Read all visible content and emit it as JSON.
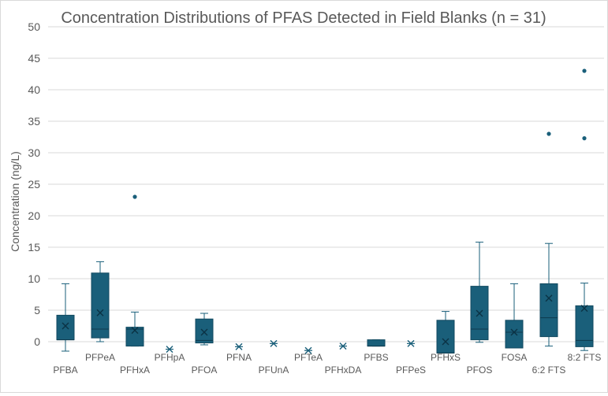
{
  "chart_data": {
    "type": "box",
    "title": "Concentration Distributions of PFAS Detected in Field Blanks (n = 31)",
    "ylabel": "Concentration (ng/L)",
    "xlabel": "",
    "ylim": [
      0,
      50
    ],
    "yticks": [
      0,
      5,
      10,
      15,
      20,
      25,
      30,
      35,
      40,
      45,
      50
    ],
    "grid": true,
    "color": "#1a5f7a",
    "categories": [
      "PFBA",
      "PFPeA",
      "PFHxA",
      "PFHpA",
      "PFOA",
      "PFNA",
      "PFUnA",
      "PFTeA",
      "PFHxDA",
      "PFBS",
      "PFPeS",
      "PFHxS",
      "PFOS",
      "FOSA",
      "6:2 FTS",
      "8:2 FTS"
    ],
    "boxes": [
      {
        "min": -1.5,
        "q1": 0.3,
        "median": 0.3,
        "q3": 4.2,
        "max": 9.2,
        "mean": 2.5,
        "outliers": []
      },
      {
        "min": 0.0,
        "q1": 0.6,
        "median": 2.0,
        "q3": 10.9,
        "max": 12.7,
        "mean": 4.6,
        "outliers": []
      },
      {
        "min": -0.7,
        "q1": -0.7,
        "median": 2.0,
        "q3": 2.3,
        "max": 4.7,
        "mean": 1.8,
        "outliers": [
          23.0
        ]
      },
      {
        "min": -1.2,
        "q1": -1.2,
        "median": -1.2,
        "q3": -1.2,
        "max": -1.2,
        "mean": -1.2,
        "outliers": []
      },
      {
        "min": -0.5,
        "q1": -0.2,
        "median": 0.2,
        "q3": 3.6,
        "max": 4.5,
        "mean": 1.5,
        "outliers": []
      },
      {
        "min": -0.8,
        "q1": -0.8,
        "median": -0.8,
        "q3": -0.8,
        "max": -0.8,
        "mean": -0.8,
        "outliers": []
      },
      {
        "min": -0.3,
        "q1": -0.3,
        "median": -0.3,
        "q3": -0.3,
        "max": -0.3,
        "mean": -0.3,
        "outliers": []
      },
      {
        "min": -1.4,
        "q1": -1.4,
        "median": -1.4,
        "q3": -1.4,
        "max": -1.4,
        "mean": -1.4,
        "outliers": []
      },
      {
        "min": -0.7,
        "q1": -0.7,
        "median": -0.7,
        "q3": -0.7,
        "max": -0.7,
        "mean": -0.7,
        "outliers": []
      },
      {
        "min": -0.7,
        "q1": -0.7,
        "median": -0.7,
        "q3": 0.3,
        "max": 0.3,
        "mean": null,
        "outliers": []
      },
      {
        "min": -0.3,
        "q1": -0.3,
        "median": -0.3,
        "q3": -0.3,
        "max": -0.3,
        "mean": -0.3,
        "outliers": []
      },
      {
        "min": -1.8,
        "q1": -1.8,
        "median": -1.8,
        "q3": 3.4,
        "max": 4.8,
        "mean": 0.0,
        "outliers": []
      },
      {
        "min": -0.1,
        "q1": 0.3,
        "median": 2.0,
        "q3": 8.8,
        "max": 15.8,
        "mean": 4.5,
        "outliers": []
      },
      {
        "min": -1.0,
        "q1": -1.0,
        "median": 1.5,
        "q3": 3.4,
        "max": 9.2,
        "mean": 1.5,
        "outliers": []
      },
      {
        "min": -0.7,
        "q1": 0.8,
        "median": 3.8,
        "q3": 9.2,
        "max": 15.6,
        "mean": 6.9,
        "outliers": [
          33.0
        ]
      },
      {
        "min": -1.4,
        "q1": -0.8,
        "median": 0.2,
        "q3": 5.7,
        "max": 9.3,
        "mean": 5.3,
        "outliers": [
          32.3,
          43.0
        ]
      }
    ]
  }
}
